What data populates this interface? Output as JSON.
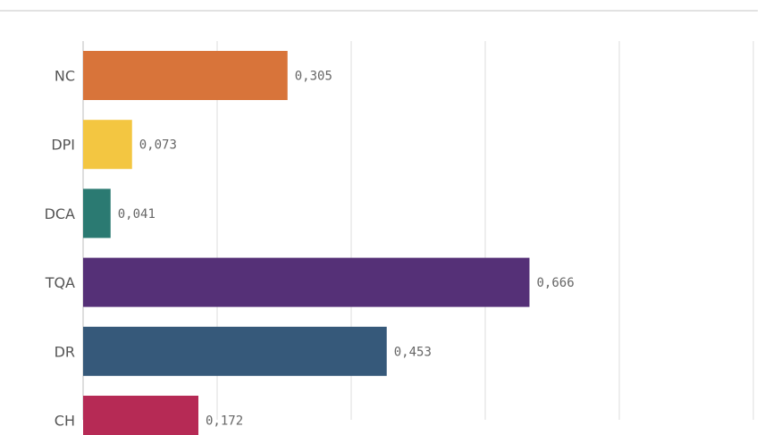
{
  "chart_data": {
    "type": "bar",
    "orientation": "horizontal",
    "categories": [
      "NC",
      "DPI",
      "DCA",
      "TQA",
      "DR",
      "CH"
    ],
    "values": [
      0.305,
      0.073,
      0.041,
      0.666,
      0.453,
      0.172
    ],
    "value_labels": [
      "0,305",
      "0,073",
      "0,041",
      "0,666",
      "0,453",
      "0,172"
    ],
    "colors": [
      "#D8743A",
      "#F3C641",
      "#2B7A72",
      "#553077",
      "#36597A",
      "#B62A55"
    ],
    "xlim": [
      0,
      1
    ],
    "grid": true,
    "title": "",
    "xlabel": "",
    "ylabel": ""
  }
}
